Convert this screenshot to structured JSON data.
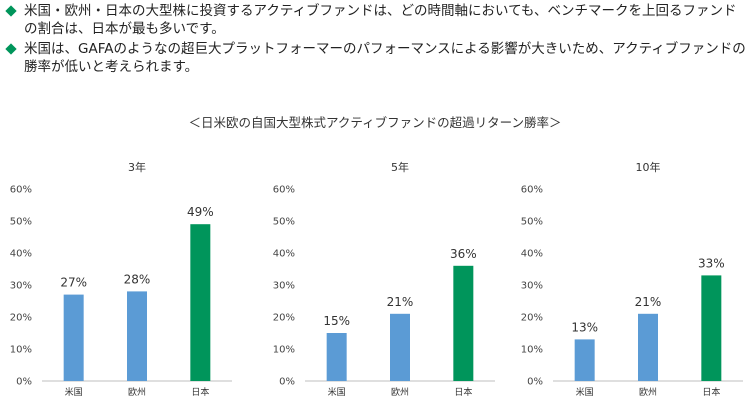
{
  "bullets": [
    "米国・欧州・日本の大型株に投資するアクティブファンドは、どの時間軸においても、ベンチマークを上回るファンドの割合は、日本が最も多いです。",
    "米国は、GAFAのようなの超巨大プラットフォーマーのパフォーマンスによる影響が大きいため、アクティブファンドの勝率が低いと考えられます。"
  ],
  "section_title": "＜日米欧の自国大型株式アクティブファンドの超過リターン勝率＞",
  "colors": {
    "blue": "#5b9bd5",
    "green": "#00955b",
    "bullet": "#00955b"
  },
  "chart_data": [
    {
      "type": "bar",
      "title": "3年",
      "categories": [
        "米国",
        "欧州",
        "日本"
      ],
      "values": [
        27,
        28,
        49
      ],
      "labels": [
        "27%",
        "28%",
        "49%"
      ],
      "ylim": [
        0,
        60
      ],
      "yticks": [
        "0%",
        "10%",
        "20%",
        "30%",
        "40%",
        "50%",
        "60%"
      ]
    },
    {
      "type": "bar",
      "title": "5年",
      "categories": [
        "米国",
        "欧州",
        "日本"
      ],
      "values": [
        15,
        21,
        36
      ],
      "labels": [
        "15%",
        "21%",
        "36%"
      ],
      "ylim": [
        0,
        60
      ],
      "yticks": [
        "0%",
        "10%",
        "20%",
        "30%",
        "40%",
        "50%",
        "60%"
      ]
    },
    {
      "type": "bar",
      "title": "10年",
      "categories": [
        "米国",
        "欧州",
        "日本"
      ],
      "values": [
        13,
        21,
        33
      ],
      "labels": [
        "13%",
        "21%",
        "33%"
      ],
      "ylim": [
        0,
        60
      ],
      "yticks": [
        "0%",
        "10%",
        "20%",
        "30%",
        "40%",
        "50%",
        "60%"
      ]
    }
  ]
}
